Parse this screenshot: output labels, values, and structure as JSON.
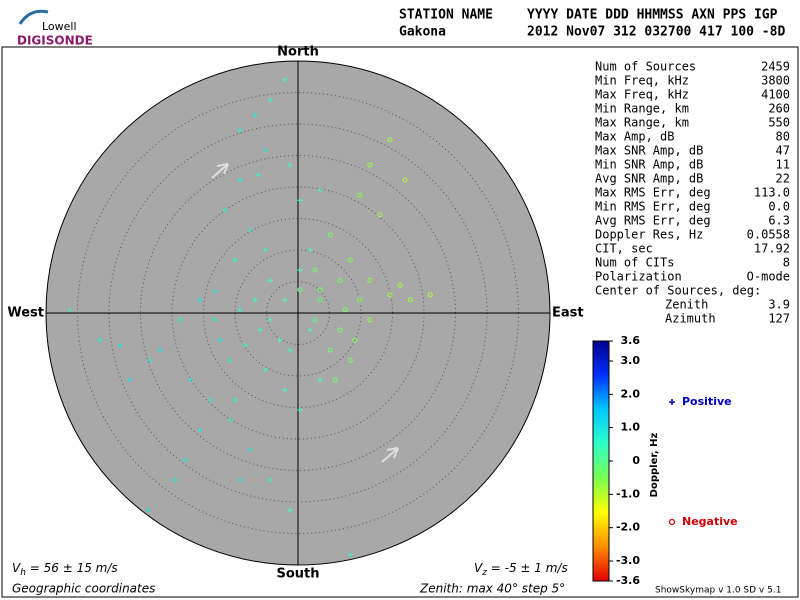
{
  "logo": {
    "top": "Lowell",
    "bottom": "DIGISONDE"
  },
  "header": {
    "row1": [
      "STATION NAME",
      "YYYY DATE  DDD HHMMSS AXN PPS IGP"
    ],
    "row2": [
      "Gakona",
      "2012 Nov07 312 032700 417 100 -8D"
    ]
  },
  "stats": [
    [
      "Num of Sources",
      "2459"
    ],
    [
      "Min Freq, kHz",
      "3800"
    ],
    [
      "Max Freq, kHz",
      "4100"
    ],
    [
      "Min Range, km",
      "260"
    ],
    [
      "Max Range, km",
      "550"
    ],
    [
      "Max Amp, dB",
      "80"
    ],
    [
      "Max SNR Amp, dB",
      "47"
    ],
    [
      "Min SNR Amp, dB",
      "11"
    ],
    [
      "Avg SNR Amp, dB",
      "22"
    ],
    [
      "Max RMS Err, deg",
      "113.0"
    ],
    [
      "Min RMS Err, deg",
      "0.0"
    ],
    [
      "Avg RMS Err, deg",
      "6.3"
    ],
    [
      "Doppler Res, Hz",
      "0.0558"
    ],
    [
      "CIT, sec",
      "17.92"
    ],
    [
      "Num of CITs",
      "8"
    ],
    [
      "Polarization",
      "O-mode"
    ]
  ],
  "center": {
    "title": "Center of Sources, deg:",
    "rows": [
      [
        "Zenith",
        "3.9"
      ],
      [
        "Azimuth",
        "127"
      ]
    ]
  },
  "footer": {
    "vh": {
      "symbol": "V",
      "sub": "h",
      "text": " = 56 ± 15 m/s"
    },
    "vz": {
      "symbol": "V",
      "sub": "z",
      "text": " = -5 ± 1 m/s"
    },
    "coords": "Geographic coordinates",
    "zenith": "Zenith: max 40°  step 5°",
    "version": "ShowSkymap v 1.0  SD v 5.1"
  },
  "chart_data": {
    "type": "skymap",
    "directions": {
      "north": "North",
      "south": "South",
      "east": "East",
      "west": "West"
    },
    "xlim": [
      -40,
      40
    ],
    "ylim": [
      -40,
      40
    ],
    "rticks": [
      5,
      10,
      15,
      20,
      25,
      30,
      35
    ],
    "series": [
      {
        "name": "Positive",
        "marker": "plus",
        "color": "#0000c0",
        "x": [
          -4.4,
          -6.8,
          -9.2,
          -2.1,
          -5.2,
          -6.3,
          -7.6,
          -10.0,
          -13.2,
          -15.6,
          -18.7,
          -21.9,
          -23.5,
          -17.1,
          -14.0,
          -10.8,
          -7.6,
          -4.4,
          -1.3,
          -19.5,
          -23.8,
          -28.3,
          -31.4,
          -36.2,
          -6.0,
          -4.4,
          -2.9,
          -8.4,
          -9.2,
          -6.8,
          -2.1,
          0.3,
          1.9,
          0.3,
          -1.3,
          3.5,
          -10.8,
          -12.4,
          -5.2,
          -2.1,
          0.3,
          3.5,
          -15.6,
          -17.9,
          -9.2,
          8.3,
          -26.7,
          -5.2,
          -11.6,
          -9.2,
          -4.4,
          -1.3,
          -13.2,
          -10.0,
          1.9
        ],
        "y": [
          33.8,
          31.4,
          29.0,
          37.0,
          25.9,
          21.9,
          13.2,
          8.4,
          3.5,
          2.1,
          -1.1,
          -5.9,
          -7.5,
          -10.6,
          -13.8,
          -17.0,
          -21.7,
          -26.5,
          -31.3,
          -26.5,
          -31.3,
          -5.1,
          -4.3,
          0.5,
          -2.7,
          -1.1,
          -4.3,
          -5.1,
          0.5,
          2.1,
          2.1,
          6.8,
          10.0,
          17.9,
          23.5,
          19.5,
          -7.5,
          -4.3,
          -9.0,
          -12.2,
          -15.4,
          -10.6,
          -18.6,
          -23.3,
          -26.5,
          -38.4,
          -10.6,
          10.0,
          16.3,
          21.1,
          5.2,
          -5.9,
          -1.1,
          -13.8,
          -2.7
        ],
        "doppler": [
          0.6,
          0.8,
          0.7,
          0.5,
          0.9,
          0.6,
          0.8,
          0.7,
          1.0,
          0.9,
          0.8,
          1.1,
          1.0,
          0.9,
          0.8,
          0.7,
          1.0,
          0.6,
          0.5,
          0.9,
          1.1,
          1.0,
          0.8,
          0.6,
          0.5,
          0.4,
          0.3,
          0.7,
          0.6,
          0.5,
          0.3,
          0.3,
          0.4,
          0.5,
          0.6,
          0.3,
          0.8,
          0.9,
          0.6,
          0.5,
          0.4,
          0.3,
          0.9,
          1.0,
          0.8,
          0.7,
          1.1,
          0.5,
          0.7,
          0.8,
          0.4,
          0.4,
          0.8,
          0.7,
          0.2
        ]
      },
      {
        "name": "Negative",
        "marker": "circle",
        "color": "#d00000",
        "x": [
          14.6,
          11.4,
          17.0,
          9.8,
          13.0,
          5.1,
          8.3,
          6.7,
          3.5,
          9.8,
          14.6,
          17.8,
          21.0,
          11.4,
          6.7,
          5.1,
          8.3,
          3.5,
          2.7,
          7.5,
          16.2,
          11.4,
          5.9,
          9.0,
          2.7,
          0.3
        ],
        "y": [
          27.5,
          23.5,
          21.1,
          18.7,
          15.6,
          12.4,
          8.4,
          5.2,
          3.7,
          2.1,
          2.9,
          2.1,
          2.9,
          -1.1,
          -2.7,
          -5.9,
          -7.5,
          2.1,
          6.8,
          0.5,
          4.4,
          5.2,
          -10.6,
          -4.3,
          -1.1,
          3.7
        ],
        "doppler": [
          -0.8,
          -0.7,
          -0.9,
          -0.6,
          -0.7,
          -0.4,
          -0.5,
          -0.4,
          -0.3,
          -0.5,
          -0.7,
          -0.8,
          -0.9,
          -0.6,
          -0.4,
          -0.3,
          -0.5,
          -0.2,
          -0.3,
          -0.4,
          -0.8,
          -0.6,
          -0.3,
          -0.5,
          -0.2,
          -0.2
        ]
      }
    ],
    "colorbar": {
      "label": "Doppler, Hz",
      "lim": [
        -3.6,
        3.6
      ],
      "ticks": [
        3.6,
        {
          "value": 3,
          "label": "3.0"
        },
        {
          "value": 2,
          "label": "2.0"
        },
        {
          "value": 1,
          "label": "1.0"
        },
        0,
        {
          "value": -1,
          "label": "-1.0"
        },
        {
          "value": -2,
          "label": "-2.0"
        },
        {
          "value": -3,
          "label": "-3.0"
        },
        -3.6
      ],
      "colors": [
        "#e00000",
        "#ff8c00",
        "#ffff00",
        "#78ff50",
        "#30ffc8",
        "#00c8ff",
        "#0030ff",
        "#00008c"
      ]
    }
  }
}
